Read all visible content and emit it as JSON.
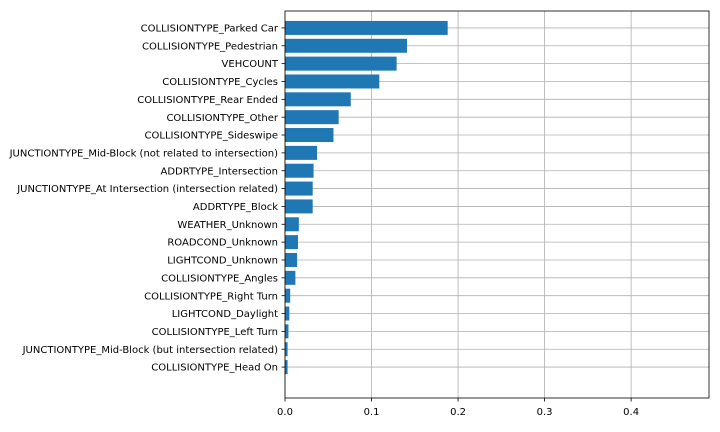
{
  "chart_data": {
    "type": "bar",
    "orientation": "horizontal",
    "title": "",
    "xlabel": "",
    "ylabel": "",
    "categories": [
      "COLLISIONTYPE_Parked Car",
      "COLLISIONTYPE_Pedestrian",
      "VEHCOUNT",
      "COLLISIONTYPE_Cycles",
      "COLLISIONTYPE_Rear Ended",
      "COLLISIONTYPE_Other",
      "COLLISIONTYPE_Sideswipe",
      "JUNCTIONTYPE_Mid-Block (not related to intersection)",
      "ADDRTYPE_Intersection",
      "JUNCTIONTYPE_At Intersection (intersection related)",
      "ADDRTYPE_Block",
      "WEATHER_Unknown",
      "ROADCOND_Unknown",
      "LIGHTCOND_Unknown",
      "COLLISIONTYPE_Angles",
      "COLLISIONTYPE_Right Turn",
      "LIGHTCOND_Daylight",
      "COLLISIONTYPE_Left Turn",
      "JUNCTIONTYPE_Mid-Block (but intersection related)",
      "COLLISIONTYPE_Head On"
    ],
    "values": [
      0.188,
      0.141,
      0.129,
      0.109,
      0.076,
      0.062,
      0.056,
      0.037,
      0.033,
      0.032,
      0.032,
      0.016,
      0.015,
      0.014,
      0.012,
      0.006,
      0.005,
      0.004,
      0.003,
      0.003
    ],
    "xlim": [
      0,
      0.49
    ],
    "xticks": [
      0.0,
      0.1,
      0.2,
      0.3,
      0.4
    ],
    "xtick_labels": [
      "0.0",
      "0.1",
      "0.2",
      "0.3",
      "0.4"
    ],
    "grid": true,
    "bar_color": "#1f77b4",
    "grid_color": "#b0b0b0",
    "axis_color": "#000000"
  }
}
